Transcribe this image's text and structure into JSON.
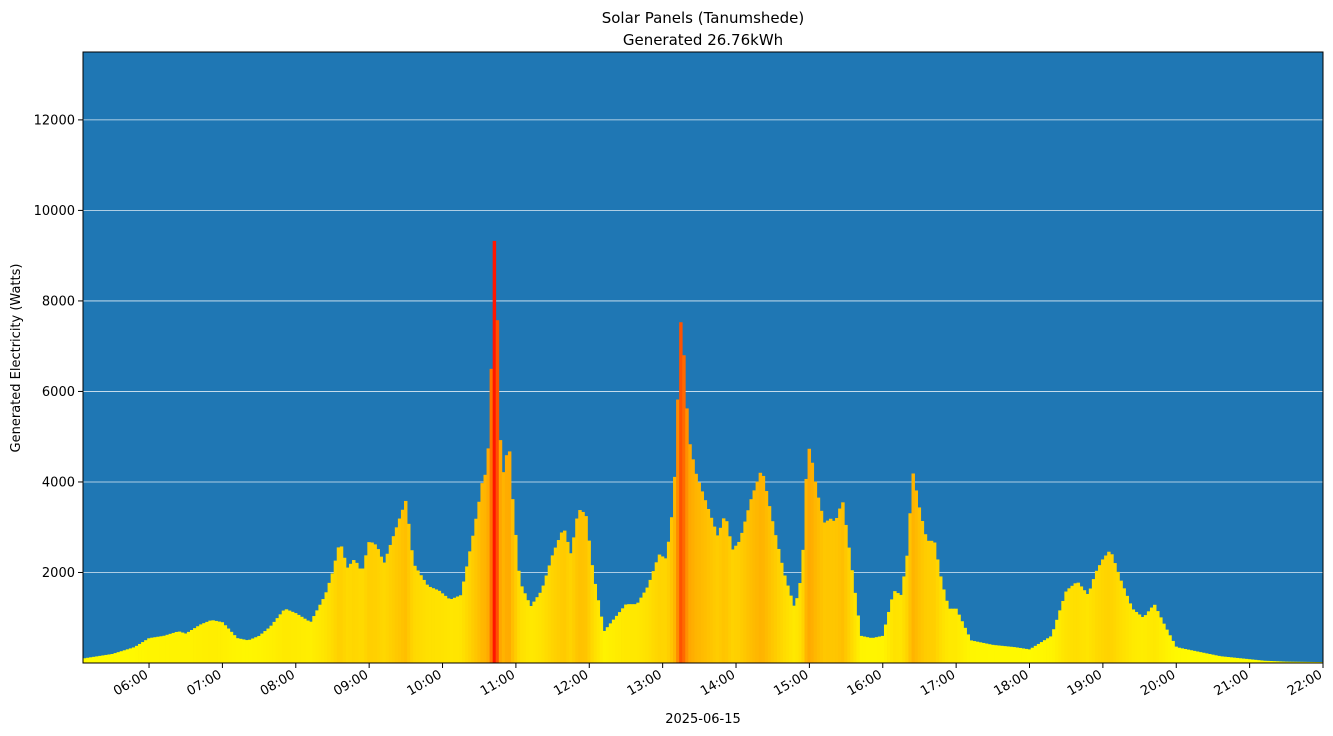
{
  "chart_data": {
    "type": "bar",
    "title": "Solar Panels (Tanumshede)",
    "subtitle": "Generated 26.76kWh",
    "xlabel": "2025-06-15",
    "ylabel": "Generated Electricity (Watts)",
    "ylim": [
      0,
      13500
    ],
    "yticks": [
      2000,
      4000,
      6000,
      8000,
      10000,
      12000
    ],
    "ytick_labels": [
      "2000",
      "4000",
      "6000",
      "8000",
      "10000",
      "12000"
    ],
    "xlim_hours": [
      5.1,
      22.0
    ],
    "xticks_hours": [
      6,
      7,
      8,
      9,
      10,
      11,
      12,
      13,
      14,
      15,
      16,
      17,
      18,
      19,
      20,
      21,
      22
    ],
    "xtick_labels": [
      "06:00",
      "07:00",
      "08:00",
      "09:00",
      "10:00",
      "11:00",
      "12:00",
      "13:00",
      "14:00",
      "15:00",
      "16:00",
      "17:00",
      "18:00",
      "19:00",
      "20:00",
      "21:00",
      "22:00"
    ],
    "grid": "horizontal",
    "background_color": "#1f77b4",
    "colormap": [
      "#ffff00",
      "#ffa500",
      "#ff0000"
    ],
    "series": [
      {
        "x_hours": [
          5.1,
          5.5,
          5.8,
          6.0,
          6.2,
          6.4,
          6.5,
          6.7,
          6.85,
          7.0,
          7.2,
          7.35,
          7.5,
          7.65,
          7.85,
          8.0,
          8.2,
          8.4,
          8.5,
          8.6,
          8.7,
          8.8,
          8.9,
          9.0,
          9.1,
          9.2,
          9.35,
          9.5,
          9.6,
          9.8,
          9.95,
          10.1,
          10.25,
          10.4,
          10.5,
          10.55,
          10.6,
          10.65,
          10.7,
          10.75,
          10.8,
          10.85,
          10.9,
          10.95,
          11.05,
          11.2,
          11.35,
          11.5,
          11.65,
          11.75,
          11.85,
          11.95,
          12.05,
          12.2,
          12.35,
          12.5,
          12.65,
          12.8,
          12.95,
          13.05,
          13.15,
          13.25,
          13.3,
          13.35,
          13.45,
          13.6,
          13.75,
          13.85,
          13.95,
          14.05,
          14.2,
          14.35,
          14.5,
          14.65,
          14.8,
          14.9,
          14.95,
          15.0,
          15.1,
          15.2,
          15.3,
          15.35,
          15.45,
          15.55,
          15.7,
          15.85,
          16.0,
          16.15,
          16.25,
          16.35,
          16.4,
          16.5,
          16.6,
          16.7,
          16.8,
          16.9,
          17.0,
          17.2,
          17.5,
          17.8,
          18.0,
          18.3,
          18.5,
          18.65,
          18.8,
          18.9,
          19.0,
          19.1,
          19.25,
          19.4,
          19.55,
          19.7,
          19.85,
          20.0,
          20.3,
          20.6,
          20.9,
          21.2,
          21.5,
          22.0
        ],
        "values": [
          100,
          200,
          350,
          550,
          600,
          700,
          650,
          850,
          950,
          900,
          550,
          500,
          600,
          800,
          1200,
          1100,
          900,
          1500,
          2000,
          2700,
          2100,
          2300,
          2000,
          2700,
          2600,
          2200,
          2900,
          3600,
          2200,
          1700,
          1600,
          1400,
          1500,
          2700,
          3600,
          4100,
          4200,
          5500,
          9500,
          7400,
          4100,
          4300,
          5000,
          3700,
          1800,
          1250,
          1600,
          2400,
          3000,
          2400,
          3400,
          3300,
          2000,
          700,
          1000,
          1300,
          1300,
          1700,
          2400,
          2300,
          3600,
          7700,
          6500,
          5000,
          4200,
          3500,
          2800,
          3300,
          2500,
          2700,
          3600,
          4300,
          3100,
          2000,
          1200,
          2000,
          4000,
          4800,
          3800,
          3100,
          3200,
          3100,
          3600,
          2400,
          600,
          550,
          600,
          1600,
          1500,
          2600,
          4300,
          3400,
          2700,
          2700,
          1800,
          1200,
          1200,
          500,
          400,
          350,
          300,
          600,
          1600,
          1800,
          1500,
          2000,
          2300,
          2500,
          1800,
          1200,
          1000,
          1300,
          800,
          350,
          250,
          150,
          100,
          50,
          30,
          20
        ]
      }
    ]
  }
}
